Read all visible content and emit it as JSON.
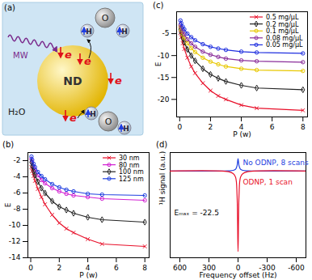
{
  "diagram": {
    "title": "(a)",
    "source": "MW",
    "particle": "ND",
    "solvent": "H₂O",
    "electron": "e",
    "hydrogen": "H",
    "oxygen": "O"
  },
  "chart_data": [
    {
      "type": "line",
      "title": "(b)",
      "x_label": "P (w)",
      "y_label": "E",
      "x": [
        0.05,
        0.1,
        0.2,
        0.3,
        0.5,
        0.75,
        1,
        1.5,
        2,
        2.5,
        3,
        4,
        5,
        8
      ],
      "xlim": [
        -0.2,
        8.3
      ],
      "xticks": [
        0,
        2,
        4,
        6,
        8
      ],
      "ylim": [
        -14,
        -1
      ],
      "yticks": [
        -14,
        -12,
        -10,
        -8,
        -6,
        -4,
        -2
      ],
      "legend": "top-right",
      "series": [
        {
          "name": "30 nm",
          "color": "#e8102a",
          "marker": "times",
          "values": [
            -2.8,
            -3.3,
            -3.9,
            -4.5,
            -5.5,
            -6.5,
            -7.4,
            -8.7,
            -9.7,
            -10.4,
            -10.9,
            -11.7,
            -12.3,
            -12.6
          ]
        },
        {
          "name": "80 nm",
          "color": "#d21fd2",
          "marker": "circle",
          "values": [
            -1.8,
            -2.2,
            -2.7,
            -3.1,
            -3.8,
            -4.4,
            -4.8,
            -5.4,
            -5.8,
            -6.1,
            -6.3,
            -6.5,
            -6.7,
            -6.9
          ]
        },
        {
          "name": "100 nm",
          "color": "#222222",
          "marker": "diamond",
          "values": [
            -2.2,
            -2.7,
            -3.3,
            -3.8,
            -4.6,
            -5.4,
            -6,
            -7,
            -7.7,
            -8.1,
            -8.5,
            -9,
            -9.3,
            -9.6
          ]
        },
        {
          "name": "125 nm",
          "color": "#1f3fe0",
          "marker": "circle",
          "values": [
            -1.5,
            -1.9,
            -2.4,
            -2.8,
            -3.4,
            -3.9,
            -4.3,
            -4.9,
            -5.3,
            -5.6,
            -5.8,
            -6.1,
            -6.2,
            -6.3
          ]
        }
      ]
    },
    {
      "type": "line",
      "title": "(c)",
      "x_label": "P (w)",
      "y_label": "E",
      "x": [
        0.05,
        0.1,
        0.2,
        0.3,
        0.5,
        0.75,
        1,
        1.5,
        2,
        2.5,
        3,
        4,
        5,
        8
      ],
      "xlim": [
        -0.2,
        8.3
      ],
      "xticks": [
        0,
        2,
        4,
        6,
        8
      ],
      "ylim": [
        -24,
        0
      ],
      "yticks": [
        -20,
        -15,
        -10,
        -5
      ],
      "legend": "top-right",
      "series": [
        {
          "name": "0.5 mg/μL",
          "color": "#e8102a",
          "marker": "times",
          "values": [
            -4.8,
            -5.8,
            -7.2,
            -8.5,
            -10.5,
            -12.5,
            -14,
            -16.3,
            -18,
            -19.2,
            -20,
            -21.3,
            -22,
            -22.5
          ]
        },
        {
          "name": "0.2 mg/μL",
          "color": "#222222",
          "marker": "diamond",
          "values": [
            -4,
            -4.8,
            -6,
            -7,
            -8.6,
            -10,
            -11.2,
            -13,
            -14.3,
            -15.2,
            -15.9,
            -16.8,
            -17.4,
            -17.8
          ]
        },
        {
          "name": "0.1 mg/μL",
          "color": "#e8c800",
          "marker": "circle",
          "values": [
            -3.5,
            -4.2,
            -5.2,
            -6,
            -7.2,
            -8.3,
            -9.2,
            -10.5,
            -11.4,
            -12,
            -12.5,
            -13,
            -13.3,
            -13.5
          ]
        },
        {
          "name": "0.08 mg/μL",
          "color": "#8b2f9b",
          "marker": "circle",
          "values": [
            -3,
            -3.6,
            -4.5,
            -5.2,
            -6.3,
            -7.2,
            -8,
            -9.1,
            -9.8,
            -10.3,
            -10.7,
            -11.1,
            -11.3,
            -11.5
          ]
        },
        {
          "name": "0.05 mg/μL",
          "color": "#2030e0",
          "marker": "circle",
          "values": [
            -2,
            -2.6,
            -3.4,
            -4,
            -5,
            -5.8,
            -6.5,
            -7.4,
            -8,
            -8.4,
            -8.7,
            -9.1,
            -9.3,
            -9.5
          ]
        }
      ]
    },
    {
      "type": "line",
      "title": "(d)",
      "x_label": "Frequency offset (Hz)",
      "y_label": "¹H signal (a.u.)",
      "x": [
        -700,
        -100,
        -50,
        -25,
        -10,
        0,
        10,
        25,
        50,
        100,
        700
      ],
      "xlim": [
        700,
        -700
      ],
      "xticks": [
        600,
        300,
        0,
        -300,
        -600
      ],
      "ylim": [
        -7,
        1.5
      ],
      "tick_labels": "x",
      "annotations": [
        "Eₘₐₓ = -22.5"
      ],
      "series": [
        {
          "name": "No ODNP, 8 scans",
          "color": "#1f3fe0",
          "values": [
            0,
            0.02,
            0.06,
            0.15,
            0.45,
            1,
            0.45,
            0.15,
            0.06,
            0.02,
            0
          ]
        },
        {
          "name": "ODNP, 1 scan",
          "color": "#e8102a",
          "values": [
            0,
            -0.05,
            -0.2,
            -0.5,
            -2,
            -6.5,
            -2,
            -0.5,
            -0.2,
            -0.05,
            0
          ]
        }
      ]
    }
  ]
}
